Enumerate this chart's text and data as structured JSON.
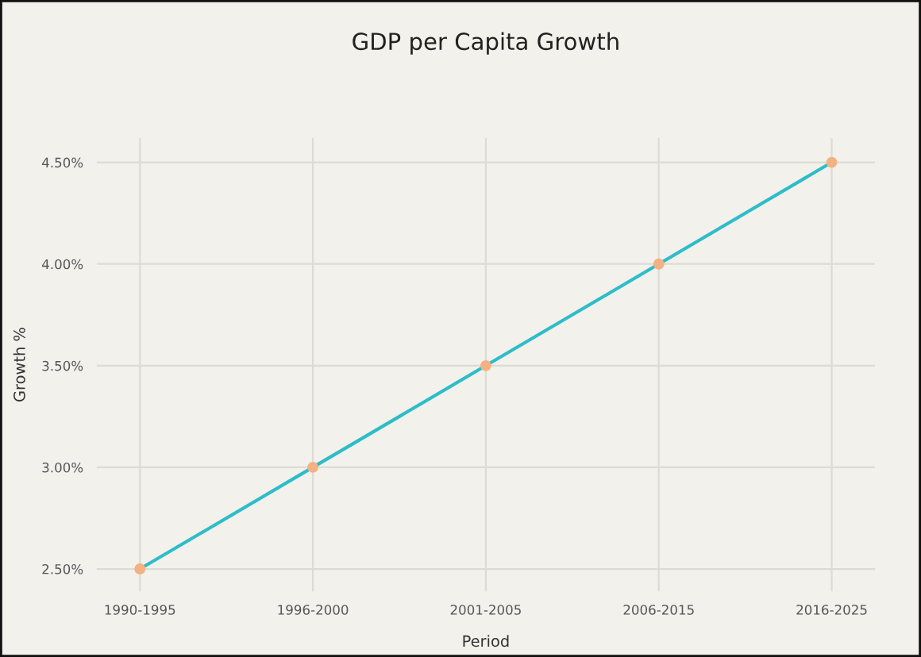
{
  "chart_data": {
    "type": "line",
    "title": "GDP per Capita Growth",
    "xlabel": "Period",
    "ylabel": "Growth %",
    "categories": [
      "1990-1995",
      "1996-2000",
      "2001-2005",
      "2006-2015",
      "2016-2025"
    ],
    "series": [
      {
        "color": "#2ebdc8",
        "values": [
          2.5,
          3.0,
          3.5,
          4.0,
          4.5
        ]
      }
    ],
    "ylim": [
      2.39,
      4.62
    ],
    "yticks": [
      {
        "value": 2.5,
        "label": "2.50%"
      },
      {
        "value": 3.0,
        "label": "3.00%"
      },
      {
        "value": 3.5,
        "label": "3.50%"
      },
      {
        "value": 4.0,
        "label": "4.00%"
      },
      {
        "value": 4.5,
        "label": "4.50%"
      }
    ],
    "grid": true,
    "marker": "circle",
    "line_style": "solid"
  }
}
